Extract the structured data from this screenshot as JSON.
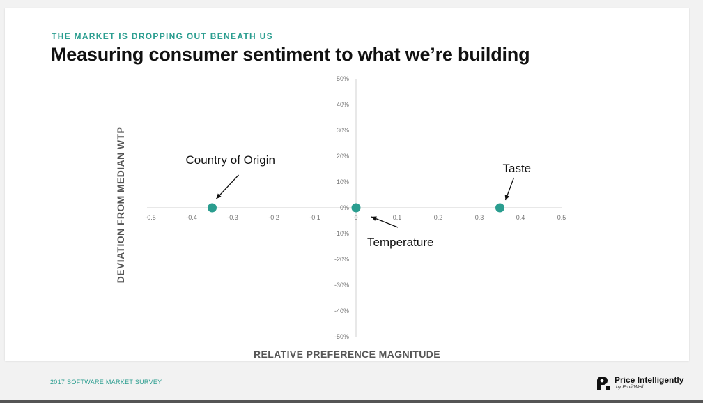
{
  "slide": {
    "kicker": "THE MARKET IS DROPPING OUT BENEATH US",
    "title": "Measuring consumer sentiment to what we’re building",
    "footer": "2017 SOFTWARE MARKET SURVEY",
    "brand": {
      "name": "Price Intelligently",
      "sub": "by ProfitWell",
      "logo_icon": "pi-logo-icon"
    }
  },
  "chart_data": {
    "type": "scatter",
    "title": "",
    "xlabel": "RELATIVE PREFERENCE MAGNITUDE",
    "ylabel": "DEVIATION FROM MEDIAN WTP",
    "xlim": [
      -0.5,
      0.5
    ],
    "ylim": [
      -0.5,
      0.5
    ],
    "x_ticks": [
      "-0.5",
      "-0.4",
      "-0.3",
      "-0.2",
      "-0.1",
      "0",
      "0.1",
      "0.2",
      "0.3",
      "0.4",
      "0.5"
    ],
    "y_ticks": [
      "50%",
      "40%",
      "30%",
      "20%",
      "10%",
      "0%",
      "-10%",
      "-20%",
      "-30%",
      "-40%",
      "-50%"
    ],
    "grid": false,
    "marker_color": "#2a9d8f",
    "points": [
      {
        "label": "Country of Origin",
        "x": -0.35,
        "y": 0.0
      },
      {
        "label": "Temperature",
        "x": 0.0,
        "y": 0.0
      },
      {
        "label": "Taste",
        "x": 0.35,
        "y": 0.0
      }
    ]
  }
}
